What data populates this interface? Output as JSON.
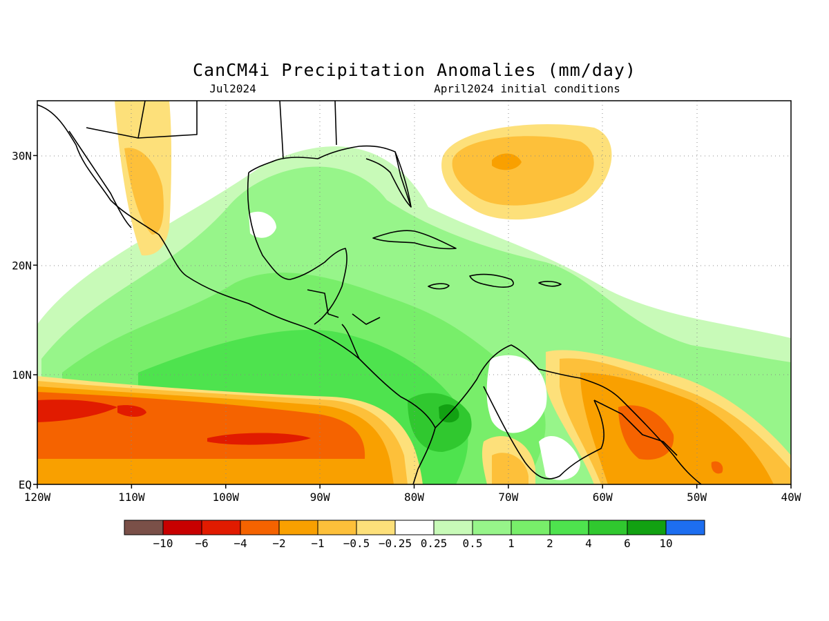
{
  "title": "CanCM4i Precipitation Anomalies (mm/day)",
  "subtitle_left": "Jul2024",
  "subtitle_right": "April2024 initial conditions",
  "y_axis": {
    "ticks": [
      {
        "value": 30,
        "label": "30N"
      },
      {
        "value": 20,
        "label": "20N"
      },
      {
        "value": 10,
        "label": "10N"
      },
      {
        "value": 0,
        "label": "EQ"
      }
    ]
  },
  "x_axis": {
    "ticks": [
      {
        "value": -120,
        "label": "120W"
      },
      {
        "value": -110,
        "label": "110W"
      },
      {
        "value": -100,
        "label": "100W"
      },
      {
        "value": -90,
        "label": "90W"
      },
      {
        "value": -80,
        "label": "80W"
      },
      {
        "value": -70,
        "label": "70W"
      },
      {
        "value": -60,
        "label": "60W"
      },
      {
        "value": -50,
        "label": "50W"
      },
      {
        "value": -40,
        "label": "40W"
      }
    ]
  },
  "map_extent": {
    "lon": [
      -120,
      -40
    ],
    "lat": [
      0,
      35
    ]
  },
  "grid": true,
  "colorbar": {
    "colors": [
      "#7a5048",
      "#c80000",
      "#e11b00",
      "#f56300",
      "#f9a000",
      "#fdc03a",
      "#fde07a",
      "#ffffff",
      "#c8fab8",
      "#97f58a",
      "#78ee6a",
      "#4ee34e",
      "#30c82f",
      "#12a112",
      "#1d6ef0"
    ],
    "labels": [
      "−10",
      "−6",
      "−4",
      "−2",
      "−1",
      "−0.5",
      "−0.25",
      "0.25",
      "0.5",
      "1",
      "2",
      "4",
      "6",
      "10"
    ]
  }
}
